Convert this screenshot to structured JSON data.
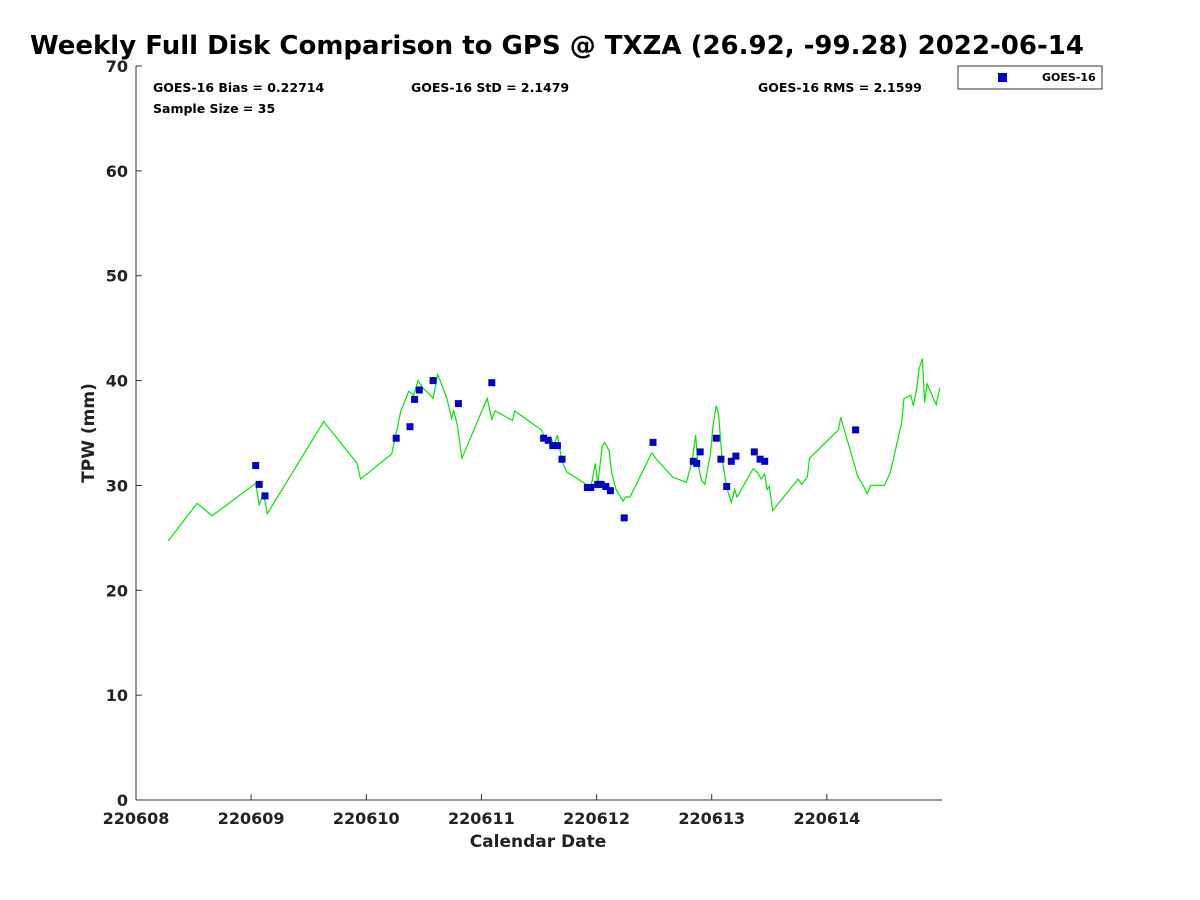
{
  "chart_data": {
    "type": "scatter",
    "title": "Weekly Full Disk Comparison to GPS @ TXZA (26.92, -99.28) 2022-06-14",
    "xlabel": "Calendar Date",
    "ylabel": "TPW (mm)",
    "xlim": [
      220608,
      220615
    ],
    "ylim": [
      0,
      70
    ],
    "x_ticks": [
      {
        "value": 220608,
        "label": "220608"
      },
      {
        "value": 220609,
        "label": "220609"
      },
      {
        "value": 220610,
        "label": "220610"
      },
      {
        "value": 220611,
        "label": "220611"
      },
      {
        "value": 220612,
        "label": "220612"
      },
      {
        "value": 220613,
        "label": "220613"
      },
      {
        "value": 220614,
        "label": "220614"
      }
    ],
    "y_ticks": [
      {
        "value": 0,
        "label": "0"
      },
      {
        "value": 10,
        "label": "10"
      },
      {
        "value": 20,
        "label": "20"
      },
      {
        "value": 30,
        "label": "30"
      },
      {
        "value": 40,
        "label": "40"
      },
      {
        "value": 50,
        "label": "50"
      },
      {
        "value": 60,
        "label": "60"
      },
      {
        "value": 70,
        "label": "70"
      }
    ],
    "grid": false,
    "legend_position": "outside-top-right",
    "stats": {
      "bias": "GOES-16 Bias = 0.22714",
      "std": "GOES-16 StD = 2.1479",
      "rms": "GOES-16 RMS = 2.1599",
      "sample_size": "Sample Size = 35"
    },
    "series": [
      {
        "name": "GOES-16",
        "kind": "scatter",
        "marker": "square",
        "color": "#0000d0",
        "points": [
          [
            220609.04,
            31.9
          ],
          [
            220609.07,
            30.1
          ],
          [
            220609.12,
            29.0
          ],
          [
            220610.26,
            34.5
          ],
          [
            220610.38,
            35.6
          ],
          [
            220610.42,
            38.2
          ],
          [
            220610.46,
            39.1
          ],
          [
            220610.58,
            40.0
          ],
          [
            220610.8,
            37.8
          ],
          [
            220611.09,
            39.8
          ],
          [
            220611.54,
            34.5
          ],
          [
            220611.58,
            34.3
          ],
          [
            220611.62,
            33.8
          ],
          [
            220611.66,
            33.8
          ],
          [
            220611.7,
            32.5
          ],
          [
            220611.92,
            29.8
          ],
          [
            220611.95,
            29.8
          ],
          [
            220612.01,
            30.1
          ],
          [
            220612.04,
            30.1
          ],
          [
            220612.08,
            29.9
          ],
          [
            220612.12,
            29.5
          ],
          [
            220612.24,
            26.9
          ],
          [
            220612.49,
            34.1
          ],
          [
            220612.84,
            32.3
          ],
          [
            220612.87,
            32.1
          ],
          [
            220612.9,
            33.2
          ],
          [
            220613.04,
            34.5
          ],
          [
            220613.08,
            32.5
          ],
          [
            220613.13,
            29.9
          ],
          [
            220613.17,
            32.3
          ],
          [
            220613.21,
            32.8
          ],
          [
            220613.37,
            33.2
          ],
          [
            220613.42,
            32.5
          ],
          [
            220613.46,
            32.3
          ],
          [
            220614.25,
            35.3
          ]
        ]
      },
      {
        "name": "",
        "kind": "line",
        "color": "#00e800",
        "points": [
          [
            220608.28,
            24.7
          ],
          [
            220608.53,
            28.3
          ],
          [
            220608.66,
            27.1
          ],
          [
            220609.04,
            30.2
          ],
          [
            220609.07,
            28.1
          ],
          [
            220609.1,
            29.2
          ],
          [
            220609.12,
            28.5
          ],
          [
            220609.14,
            27.3
          ],
          [
            220609.63,
            36.1
          ],
          [
            220609.92,
            32.1
          ],
          [
            220609.95,
            30.6
          ],
          [
            220610.22,
            33.0
          ],
          [
            220610.25,
            34.5
          ],
          [
            220610.3,
            37.1
          ],
          [
            220610.37,
            39.0
          ],
          [
            220610.41,
            38.6
          ],
          [
            220610.45,
            40.0
          ],
          [
            220610.49,
            39.3
          ],
          [
            220610.54,
            38.8
          ],
          [
            220610.58,
            38.3
          ],
          [
            220610.62,
            40.6
          ],
          [
            220610.7,
            38.3
          ],
          [
            220610.74,
            36.4
          ],
          [
            220610.76,
            37.1
          ],
          [
            220610.79,
            35.8
          ],
          [
            220610.83,
            32.6
          ],
          [
            220611.05,
            38.3
          ],
          [
            220611.09,
            36.3
          ],
          [
            220611.12,
            37.1
          ],
          [
            220611.27,
            36.2
          ],
          [
            220611.29,
            37.1
          ],
          [
            220611.52,
            35.3
          ],
          [
            220611.57,
            34.1
          ],
          [
            220611.6,
            34.6
          ],
          [
            220611.63,
            33.8
          ],
          [
            220611.66,
            34.8
          ],
          [
            220611.7,
            32.3
          ],
          [
            220611.74,
            31.3
          ],
          [
            220611.91,
            30.1
          ],
          [
            220611.95,
            29.8
          ],
          [
            220611.99,
            32.1
          ],
          [
            220612.01,
            30.1
          ],
          [
            220612.05,
            33.8
          ],
          [
            220612.07,
            34.1
          ],
          [
            220612.11,
            33.3
          ],
          [
            220612.13,
            31.3
          ],
          [
            220612.17,
            29.6
          ],
          [
            220612.23,
            28.5
          ],
          [
            220612.25,
            28.9
          ],
          [
            220612.29,
            28.9
          ],
          [
            220612.48,
            33.1
          ],
          [
            220612.52,
            32.5
          ],
          [
            220612.66,
            30.8
          ],
          [
            220612.78,
            30.3
          ],
          [
            220612.83,
            32.3
          ],
          [
            220612.86,
            34.8
          ],
          [
            220612.88,
            32.1
          ],
          [
            220612.91,
            30.5
          ],
          [
            220612.94,
            30.1
          ],
          [
            220612.99,
            33.1
          ],
          [
            220613.01,
            35.6
          ],
          [
            220613.04,
            37.6
          ],
          [
            220613.06,
            36.8
          ],
          [
            220613.09,
            32.5
          ],
          [
            220613.13,
            29.8
          ],
          [
            220613.17,
            28.4
          ],
          [
            220613.2,
            29.6
          ],
          [
            220613.22,
            28.9
          ],
          [
            220613.36,
            31.6
          ],
          [
            220613.4,
            31.2
          ],
          [
            220613.43,
            30.6
          ],
          [
            220613.46,
            31.1
          ],
          [
            220613.48,
            29.6
          ],
          [
            220613.5,
            29.9
          ],
          [
            220613.53,
            27.6
          ],
          [
            220613.75,
            30.6
          ],
          [
            220613.78,
            30.1
          ],
          [
            220613.83,
            30.8
          ],
          [
            220613.85,
            32.6
          ],
          [
            220614.1,
            35.3
          ],
          [
            220614.12,
            36.5
          ],
          [
            220614.27,
            30.8
          ],
          [
            220614.31,
            30.1
          ],
          [
            220614.35,
            29.2
          ],
          [
            220614.38,
            30.0
          ],
          [
            220614.5,
            30.0
          ],
          [
            220614.55,
            31.2
          ],
          [
            220614.65,
            36.0
          ],
          [
            220614.67,
            38.3
          ],
          [
            220614.73,
            38.6
          ],
          [
            220614.75,
            37.6
          ],
          [
            220614.78,
            39.2
          ],
          [
            220614.8,
            41.1
          ],
          [
            220614.83,
            42.1
          ],
          [
            220614.85,
            37.9
          ],
          [
            220614.87,
            39.7
          ],
          [
            220614.95,
            37.7
          ],
          [
            220614.98,
            39.3
          ]
        ]
      }
    ]
  }
}
